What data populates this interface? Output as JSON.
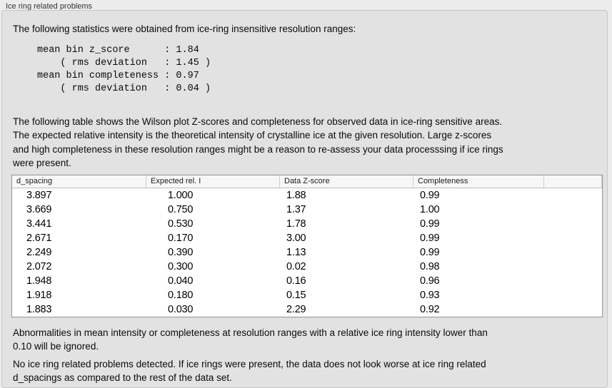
{
  "panel": {
    "title": "Ice ring related problems"
  },
  "intro": "The following statistics were obtained from ice-ring insensitive resolution ranges:",
  "stats_block": "mean bin z_score      : 1.84\n    ( rms deviation   : 1.45 )\nmean bin completeness : 0.97\n    ( rms deviation   : 0.04 )",
  "description": "The following table shows the Wilson plot Z-scores and completeness for observed data in ice-ring sensitive areas.\nThe expected relative intensity is the theoretical intensity of crystalline ice at the given resolution. Large z-scores\nand high completeness in these resolution ranges might be a reason to re-assess your data processsing if ice rings\nwere present.",
  "table": {
    "columns": [
      "d_spacing",
      "Expected rel. I",
      "Data Z-score",
      "Completeness"
    ],
    "rows": [
      [
        "3.897",
        "1.000",
        "1.88",
        "0.99"
      ],
      [
        "3.669",
        "0.750",
        "1.37",
        "1.00"
      ],
      [
        "3.441",
        "0.530",
        "1.78",
        "0.99"
      ],
      [
        "2.671",
        "0.170",
        "3.00",
        "0.99"
      ],
      [
        "2.249",
        "0.390",
        "1.13",
        "0.99"
      ],
      [
        "2.072",
        "0.300",
        "0.02",
        "0.98"
      ],
      [
        "1.948",
        "0.040",
        "0.16",
        "0.96"
      ],
      [
        "1.918",
        "0.180",
        "0.15",
        "0.93"
      ],
      [
        "1.883",
        "0.030",
        "2.29",
        "0.92"
      ]
    ]
  },
  "note_ignore": "Abnormalities in mean intensity or completeness at resolution ranges with a relative ice ring intensity lower than\n0.10 will be ignored.",
  "conclusion": "No ice ring related problems detected. If ice rings were present, the data does not look worse at ice ring related\nd_spacings as compared to the rest of the data set."
}
